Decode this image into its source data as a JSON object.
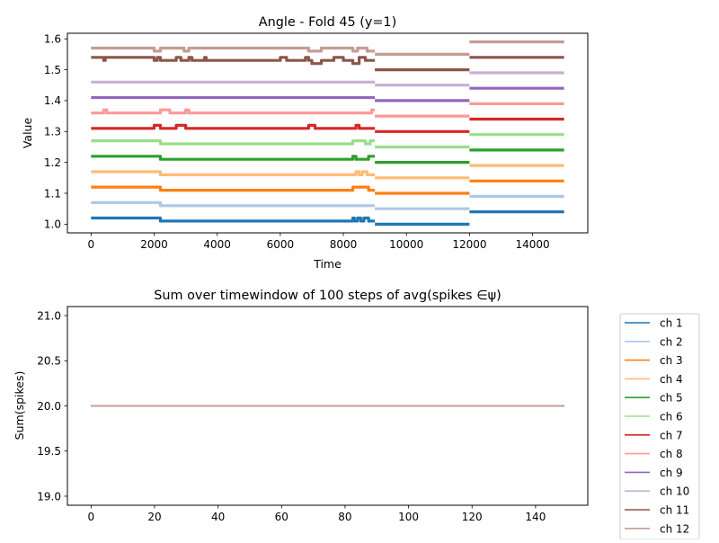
{
  "chart_data": [
    {
      "type": "line",
      "title": "Angle - Fold 45 (y=1)",
      "xlabel": "Time",
      "ylabel": "Value",
      "xlim": [
        -750,
        15750
      ],
      "ylim": [
        0.972,
        1.618
      ],
      "xticks": [
        0,
        2000,
        4000,
        6000,
        8000,
        10000,
        12000,
        14000
      ],
      "yticks": [
        1.0,
        1.1,
        1.2,
        1.3,
        1.4,
        1.5,
        1.6
      ],
      "grid": false,
      "legend": "none",
      "series": [
        {
          "color": "#1f77b4",
          "segments": [
            {
              "x": [
                0,
                2200,
                2200,
                8300,
                8300,
                8350,
                8350,
                8450,
                8450,
                8550,
                8550,
                8650,
                8650,
                8800,
                8800,
                9000
              ],
              "y": [
                1.02,
                1.02,
                1.01,
                1.01,
                1.02,
                1.02,
                1.01,
                1.01,
                1.02,
                1.02,
                1.01,
                1.01,
                1.02,
                1.02,
                1.01,
                1.01
              ]
            },
            {
              "x": [
                9000,
                12000
              ],
              "y": [
                1.0,
                1.0
              ]
            },
            {
              "x": [
                12000,
                15000
              ],
              "y": [
                1.04,
                1.04
              ]
            }
          ]
        },
        {
          "color": "#aec7e8",
          "segments": [
            {
              "x": [
                0,
                2200,
                2200,
                9000
              ],
              "y": [
                1.07,
                1.07,
                1.06,
                1.06
              ]
            },
            {
              "x": [
                9000,
                12000
              ],
              "y": [
                1.05,
                1.05
              ]
            },
            {
              "x": [
                12000,
                15000
              ],
              "y": [
                1.09,
                1.09
              ]
            }
          ]
        },
        {
          "color": "#ff7f0e",
          "segments": [
            {
              "x": [
                0,
                2200,
                2200,
                8300,
                8300,
                8800,
                8800,
                9000
              ],
              "y": [
                1.12,
                1.12,
                1.11,
                1.11,
                1.12,
                1.12,
                1.11,
                1.11
              ]
            },
            {
              "x": [
                9000,
                12000
              ],
              "y": [
                1.1,
                1.1
              ]
            },
            {
              "x": [
                12000,
                15000
              ],
              "y": [
                1.14,
                1.14
              ]
            }
          ]
        },
        {
          "color": "#ffbb78",
          "segments": [
            {
              "x": [
                0,
                2200,
                2200,
                8400,
                8400,
                8500,
                8500,
                8600,
                8600,
                8750,
                8750,
                9000
              ],
              "y": [
                1.17,
                1.17,
                1.16,
                1.16,
                1.17,
                1.17,
                1.16,
                1.16,
                1.17,
                1.17,
                1.16,
                1.16
              ]
            },
            {
              "x": [
                9000,
                12000
              ],
              "y": [
                1.15,
                1.15
              ]
            },
            {
              "x": [
                12000,
                15000
              ],
              "y": [
                1.19,
                1.19
              ]
            }
          ]
        },
        {
          "color": "#2ca02c",
          "segments": [
            {
              "x": [
                0,
                2200,
                2200,
                8300,
                8300,
                8400,
                8400,
                8800,
                8800,
                9000
              ],
              "y": [
                1.22,
                1.22,
                1.21,
                1.21,
                1.22,
                1.22,
                1.21,
                1.21,
                1.22,
                1.22
              ]
            },
            {
              "x": [
                9000,
                12000
              ],
              "y": [
                1.2,
                1.2
              ]
            },
            {
              "x": [
                12000,
                15000
              ],
              "y": [
                1.24,
                1.24
              ]
            }
          ]
        },
        {
          "color": "#98df8a",
          "segments": [
            {
              "x": [
                0,
                2200,
                2200,
                8300,
                8300,
                8700,
                8700,
                8850,
                8850,
                9000
              ],
              "y": [
                1.27,
                1.27,
                1.26,
                1.26,
                1.27,
                1.27,
                1.26,
                1.26,
                1.27,
                1.27
              ]
            },
            {
              "x": [
                9000,
                12000
              ],
              "y": [
                1.25,
                1.25
              ]
            },
            {
              "x": [
                12000,
                15000
              ],
              "y": [
                1.29,
                1.29
              ]
            }
          ]
        },
        {
          "color": "#d62728",
          "segments": [
            {
              "x": [
                0,
                2000,
                2000,
                2200,
                2200,
                2700,
                2700,
                3000,
                3000,
                6900,
                6900,
                7100,
                7100,
                8400,
                8400,
                8500,
                8500,
                9000
              ],
              "y": [
                1.31,
                1.31,
                1.32,
                1.32,
                1.31,
                1.31,
                1.32,
                1.32,
                1.31,
                1.31,
                1.32,
                1.32,
                1.31,
                1.31,
                1.32,
                1.32,
                1.31,
                1.31
              ]
            },
            {
              "x": [
                9000,
                12000
              ],
              "y": [
                1.3,
                1.3
              ]
            },
            {
              "x": [
                12000,
                15000
              ],
              "y": [
                1.34,
                1.34
              ]
            }
          ]
        },
        {
          "color": "#ff9896",
          "segments": [
            {
              "x": [
                0,
                400,
                400,
                500,
                500,
                2200,
                2200,
                2500,
                2500,
                3000,
                3000,
                3100,
                3100,
                3200,
                3200,
                8900,
                8900,
                9000
              ],
              "y": [
                1.36,
                1.36,
                1.37,
                1.37,
                1.36,
                1.36,
                1.37,
                1.37,
                1.36,
                1.36,
                1.37,
                1.37,
                1.36,
                1.36,
                1.36,
                1.36,
                1.37,
                1.37
              ]
            },
            {
              "x": [
                9000,
                12000
              ],
              "y": [
                1.35,
                1.35
              ]
            },
            {
              "x": [
                12000,
                15000
              ],
              "y": [
                1.39,
                1.39
              ]
            }
          ]
        },
        {
          "color": "#9467bd",
          "segments": [
            {
              "x": [
                0,
                9000
              ],
              "y": [
                1.41,
                1.41
              ]
            },
            {
              "x": [
                9000,
                12000
              ],
              "y": [
                1.4,
                1.4
              ]
            },
            {
              "x": [
                12000,
                15000
              ],
              "y": [
                1.44,
                1.44
              ]
            }
          ]
        },
        {
          "color": "#c5b0d5",
          "segments": [
            {
              "x": [
                0,
                9000
              ],
              "y": [
                1.46,
                1.46
              ]
            },
            {
              "x": [
                9000,
                12000
              ],
              "y": [
                1.45,
                1.45
              ]
            },
            {
              "x": [
                12000,
                15000
              ],
              "y": [
                1.49,
                1.49
              ]
            }
          ]
        },
        {
          "color": "#8c564b",
          "segments": [
            {
              "x": [
                0,
                400,
                400,
                450,
                450,
                2000,
                2000,
                2100,
                2100,
                2200,
                2200,
                2700,
                2700,
                2850,
                2850,
                3100,
                3100,
                3200,
                3200,
                3600,
                3600,
                3650,
                3650,
                6000,
                6000,
                6200,
                6200,
                6800,
                6800,
                6900,
                6900,
                7000,
                7000,
                7300,
                7300,
                7700,
                7700,
                8000,
                8000,
                8300,
                8300,
                8500,
                8500,
                8700,
                8700,
                9000
              ],
              "y": [
                1.54,
                1.54,
                1.53,
                1.53,
                1.54,
                1.54,
                1.53,
                1.53,
                1.54,
                1.54,
                1.53,
                1.53,
                1.54,
                1.54,
                1.53,
                1.53,
                1.54,
                1.54,
                1.53,
                1.53,
                1.54,
                1.54,
                1.53,
                1.53,
                1.54,
                1.54,
                1.53,
                1.53,
                1.54,
                1.54,
                1.53,
                1.53,
                1.52,
                1.52,
                1.53,
                1.53,
                1.54,
                1.54,
                1.53,
                1.53,
                1.52,
                1.52,
                1.54,
                1.54,
                1.53,
                1.53
              ]
            },
            {
              "x": [
                9000,
                12000
              ],
              "y": [
                1.5,
                1.5
              ]
            },
            {
              "x": [
                12000,
                15000
              ],
              "y": [
                1.54,
                1.54
              ]
            }
          ]
        },
        {
          "color": "#c49c94",
          "segments": [
            {
              "x": [
                0,
                2000,
                2000,
                2200,
                2200,
                2950,
                2950,
                3100,
                3100,
                6900,
                6900,
                7300,
                7300,
                8300,
                8300,
                8450,
                8450,
                8750,
                8750,
                9000
              ],
              "y": [
                1.57,
                1.57,
                1.56,
                1.56,
                1.57,
                1.57,
                1.56,
                1.56,
                1.57,
                1.57,
                1.56,
                1.56,
                1.57,
                1.57,
                1.56,
                1.56,
                1.57,
                1.57,
                1.56,
                1.56
              ]
            },
            {
              "x": [
                9000,
                12000
              ],
              "y": [
                1.55,
                1.55
              ]
            },
            {
              "x": [
                12000,
                15000
              ],
              "y": [
                1.59,
                1.59
              ]
            }
          ]
        }
      ]
    },
    {
      "type": "line",
      "title": "Sum over timewindow of 100 steps of avg(spikes ∈ψ)",
      "xlabel": "",
      "ylabel": "Sum(spikes)",
      "xlim": [
        -7.45,
        156.45
      ],
      "ylim": [
        18.9,
        21.1
      ],
      "xticks": [
        0,
        20,
        40,
        60,
        80,
        100,
        120,
        140
      ],
      "yticks": [
        19.0,
        19.5,
        20.0,
        20.5,
        21.0
      ],
      "grid": false,
      "legend": "outside-right",
      "series": [
        {
          "name": "ch 1",
          "color": "#1f77b4",
          "x": [
            0,
            149
          ],
          "y": [
            20.0,
            20.0
          ]
        },
        {
          "name": "ch 2",
          "color": "#aec7e8",
          "x": [
            0,
            149
          ],
          "y": [
            20.0,
            20.0
          ]
        },
        {
          "name": "ch 3",
          "color": "#ff7f0e",
          "x": [
            0,
            149
          ],
          "y": [
            20.0,
            20.0
          ]
        },
        {
          "name": "ch 4",
          "color": "#ffbb78",
          "x": [
            0,
            149
          ],
          "y": [
            20.0,
            20.0
          ]
        },
        {
          "name": "ch 5",
          "color": "#2ca02c",
          "x": [
            0,
            149
          ],
          "y": [
            20.0,
            20.0
          ]
        },
        {
          "name": "ch 6",
          "color": "#98df8a",
          "x": [
            0,
            149
          ],
          "y": [
            20.0,
            20.0
          ]
        },
        {
          "name": "ch 7",
          "color": "#d62728",
          "x": [
            0,
            149
          ],
          "y": [
            20.0,
            20.0
          ]
        },
        {
          "name": "ch 8",
          "color": "#ff9896",
          "x": [
            0,
            149
          ],
          "y": [
            20.0,
            20.0
          ]
        },
        {
          "name": "ch 9",
          "color": "#9467bd",
          "x": [
            0,
            149
          ],
          "y": [
            20.0,
            20.0
          ]
        },
        {
          "name": "ch 10",
          "color": "#c5b0d5",
          "x": [
            0,
            149
          ],
          "y": [
            20.0,
            20.0
          ]
        },
        {
          "name": "ch 11",
          "color": "#8c564b",
          "x": [
            0,
            149
          ],
          "y": [
            20.0,
            20.0
          ]
        },
        {
          "name": "ch 12",
          "color": "#c49c94",
          "x": [
            0,
            149
          ],
          "y": [
            20.0,
            20.0
          ]
        }
      ]
    }
  ]
}
